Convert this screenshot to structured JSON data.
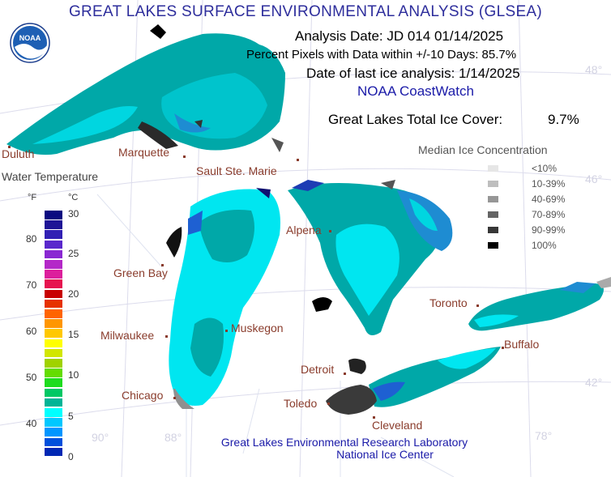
{
  "title": "GREAT LAKES SURFACE ENVIRONMENTAL ANALYSIS (GLSEA)",
  "analysis": {
    "date_line": "Analysis Date:  JD 014 01/14/2025",
    "pixels_line": "Percent Pixels with Data within +/-10 Days:  85.7%",
    "ice_date_line": "Date of last ice analysis: 1/14/2025",
    "source": "NOAA CoastWatch",
    "total_ice_label": "Great Lakes Total Ice Cover:",
    "total_ice_value": "9.7%"
  },
  "logo": {
    "text": "NOAA",
    "icon": "noaa-logo-icon"
  },
  "cities": {
    "duluth": "Duluth",
    "marquette": "Marquette",
    "sault": "Sault Ste. Marie",
    "green_bay": "Green Bay",
    "alpena": "Alpena",
    "milwaukee": "Milwaukee",
    "muskegon": "Muskegon",
    "chicago": "Chicago",
    "detroit": "Detroit",
    "toledo": "Toledo",
    "cleveland": "Cleveland",
    "toronto": "Toronto",
    "buffalo": "Buffalo"
  },
  "gridlines": {
    "lat_48": "48°",
    "lat_46": "46°",
    "lat_42": "42°",
    "lon_90": "90°",
    "lon_88": "88°",
    "lon_78": "78°"
  },
  "water_legend": {
    "title": "Water Temperature",
    "f_unit": "°F",
    "c_unit": "°C",
    "f_ticks": [
      "80",
      "70",
      "60",
      "50",
      "40"
    ],
    "c_ticks": [
      "30",
      "25",
      "20",
      "15",
      "10",
      "5",
      "0"
    ],
    "colors": [
      "#0a0a80",
      "#1e1496",
      "#3220b4",
      "#5a28cc",
      "#8a28d2",
      "#b428c8",
      "#dc1e9c",
      "#e61450",
      "#c80000",
      "#e63200",
      "#ff6400",
      "#ff9600",
      "#ffc800",
      "#ffff00",
      "#d2e600",
      "#a0d200",
      "#64dc00",
      "#1edc1e",
      "#00c864",
      "#00b496",
      "#00ffff",
      "#00c8ff",
      "#0096ff",
      "#0050dc",
      "#0028b4"
    ]
  },
  "ice_legend": {
    "title": "Median Ice Concentration",
    "items": [
      {
        "label": "<10%",
        "color": "#e6e6e6"
      },
      {
        "label": "10-39%",
        "color": "#bebebe"
      },
      {
        "label": "40-69%",
        "color": "#969696"
      },
      {
        "label": "70-89%",
        "color": "#646464"
      },
      {
        "label": "90-99%",
        "color": "#373737"
      },
      {
        "label": "100%",
        "color": "#000000"
      }
    ]
  },
  "footer": {
    "line1": "Great Lakes Environmental Research Laboratory",
    "line2": "National Ice Center"
  },
  "colors": {
    "water_warm": "#00a5a5",
    "water_cold": "#00e6f0",
    "water_coldest": "#1e8cd2",
    "land": "#ffffff",
    "grid": "#dcdcec"
  }
}
